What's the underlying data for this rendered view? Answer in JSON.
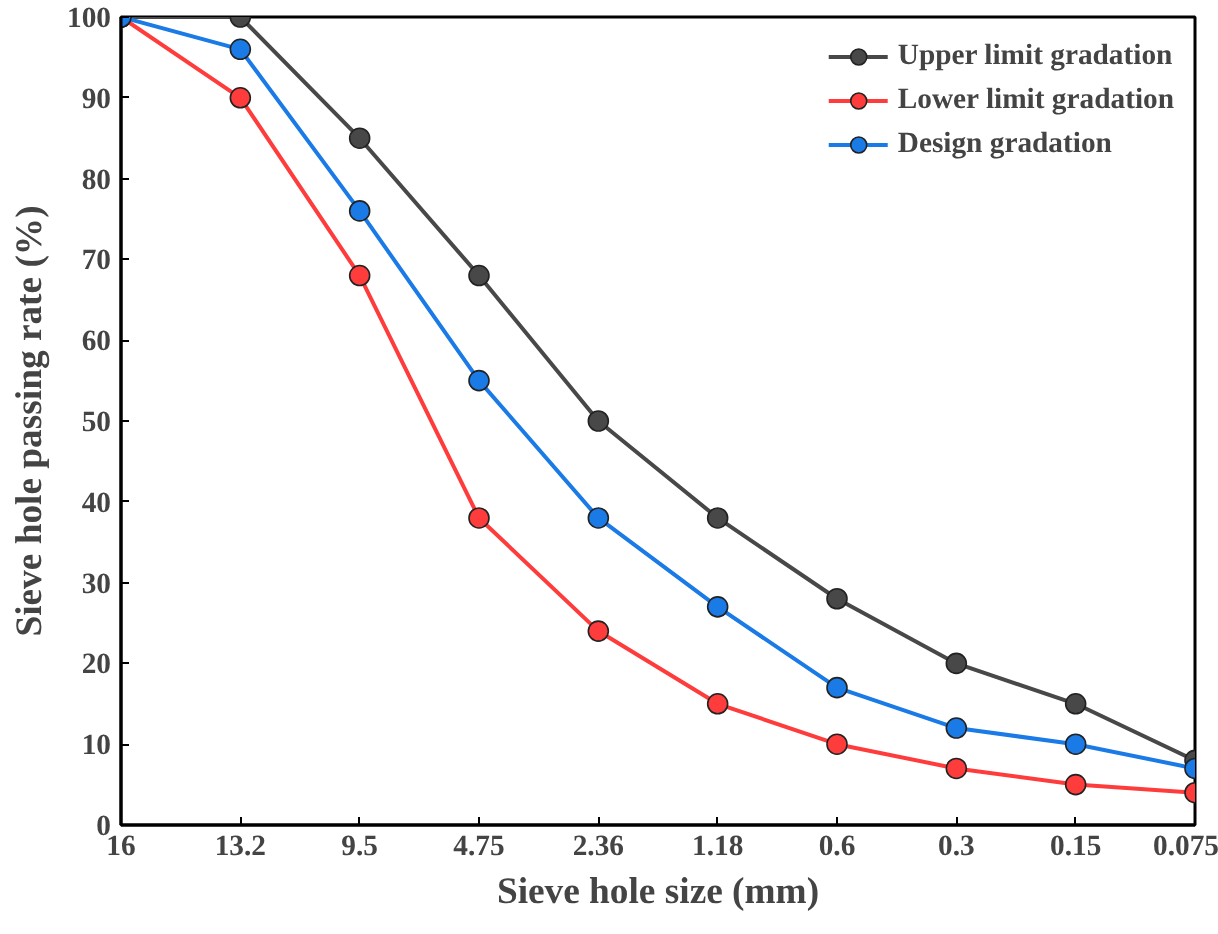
{
  "chart_data": {
    "type": "line",
    "xlabel": "Sieve hole size (mm)",
    "ylabel": "Sieve hole passing rate (%)",
    "categories": [
      "16",
      "13.2",
      "9.5",
      "4.75",
      "2.36",
      "1.18",
      "0.6",
      "0.3",
      "0.15",
      "0.075"
    ],
    "series": [
      {
        "name": "Upper limit gradation",
        "color": "#484848",
        "values": [
          100,
          100,
          85,
          68,
          50,
          38,
          28,
          20,
          15,
          8
        ]
      },
      {
        "name": "Lower limit gradation",
        "color": "#ff3c3c",
        "values": [
          100,
          90,
          68,
          38,
          24,
          15,
          10,
          7,
          5,
          4
        ]
      },
      {
        "name": "Design gradation",
        "color": "#1a7ae6",
        "values": [
          100,
          96,
          76,
          55,
          38,
          27,
          17,
          12,
          10,
          7
        ]
      }
    ],
    "ylim": [
      0,
      100
    ],
    "yticks": [
      0,
      10,
      20,
      30,
      40,
      50,
      60,
      70,
      80,
      90,
      100
    ],
    "grid": false,
    "legend": "top right",
    "marker": "circle",
    "line_style": "solid"
  }
}
